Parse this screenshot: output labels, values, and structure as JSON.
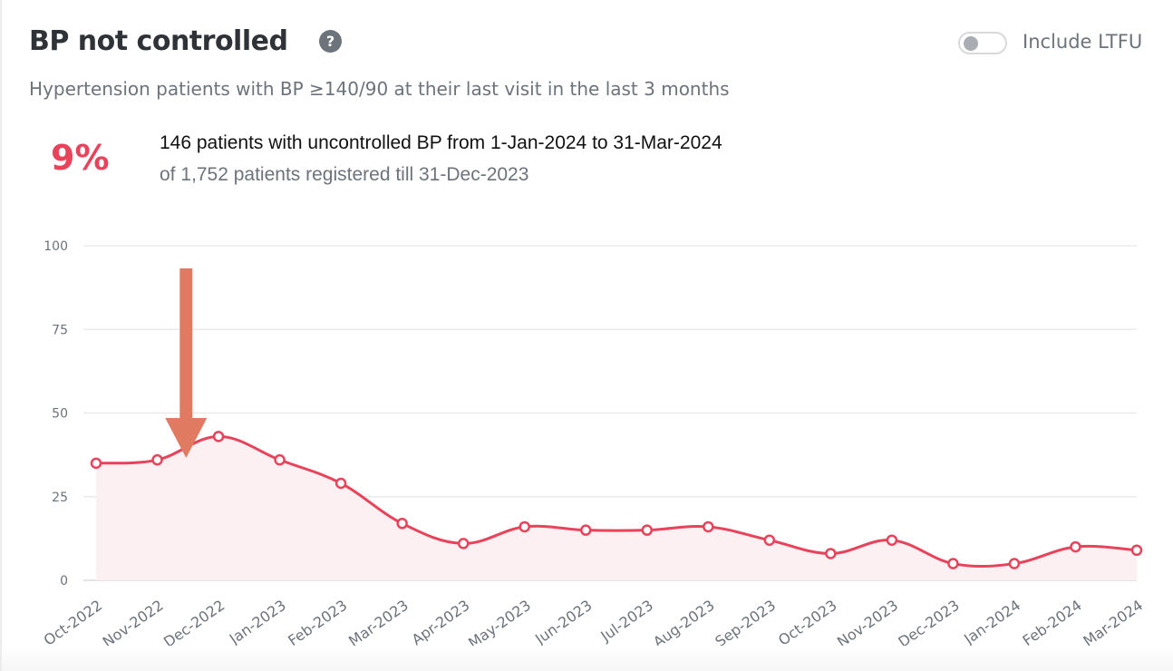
{
  "header": {
    "title": "BP not controlled",
    "help_icon": "question-circle-icon",
    "help_glyph": "?",
    "toggle_label": "Include LTFU",
    "toggle_on": false,
    "subtitle": "Hypertension patients with BP ≥140/90 at their last visit in the last 3 months"
  },
  "summary": {
    "percent": "9%",
    "line1": "146 patients with uncontrolled BP from 1-Jan-2024 to 31-Mar-2024",
    "line2": "of 1,752 patients registered till 31-Dec-2023"
  },
  "colors": {
    "accent": "#e8435a",
    "fill": "#fdf0f2",
    "annotation_arrow": "#e07b62",
    "grid": "#ebebeb"
  },
  "chart_data": {
    "type": "line",
    "title": "BP not controlled",
    "xlabel": "",
    "ylabel": "",
    "ylim": [
      0,
      100
    ],
    "yticks": [
      0,
      25,
      50,
      75,
      100
    ],
    "grid": true,
    "categories": [
      "Oct-2022",
      "Nov-2022",
      "Dec-2022",
      "Jan-2023",
      "Feb-2023",
      "Mar-2023",
      "Apr-2023",
      "May-2023",
      "Jun-2023",
      "Jul-2023",
      "Aug-2023",
      "Sep-2023",
      "Oct-2023",
      "Nov-2023",
      "Dec-2023",
      "Jan-2024",
      "Feb-2024",
      "Mar-2024"
    ],
    "series": [
      {
        "name": "BP not controlled",
        "values": [
          35,
          36,
          43,
          36,
          29,
          17,
          11,
          16,
          15,
          15,
          16,
          12,
          8,
          12,
          5,
          5,
          10,
          9
        ]
      }
    ],
    "annotations": [
      {
        "type": "arrow",
        "direction": "down",
        "between": [
          "Nov-2022",
          "Dec-2022"
        ]
      }
    ]
  }
}
